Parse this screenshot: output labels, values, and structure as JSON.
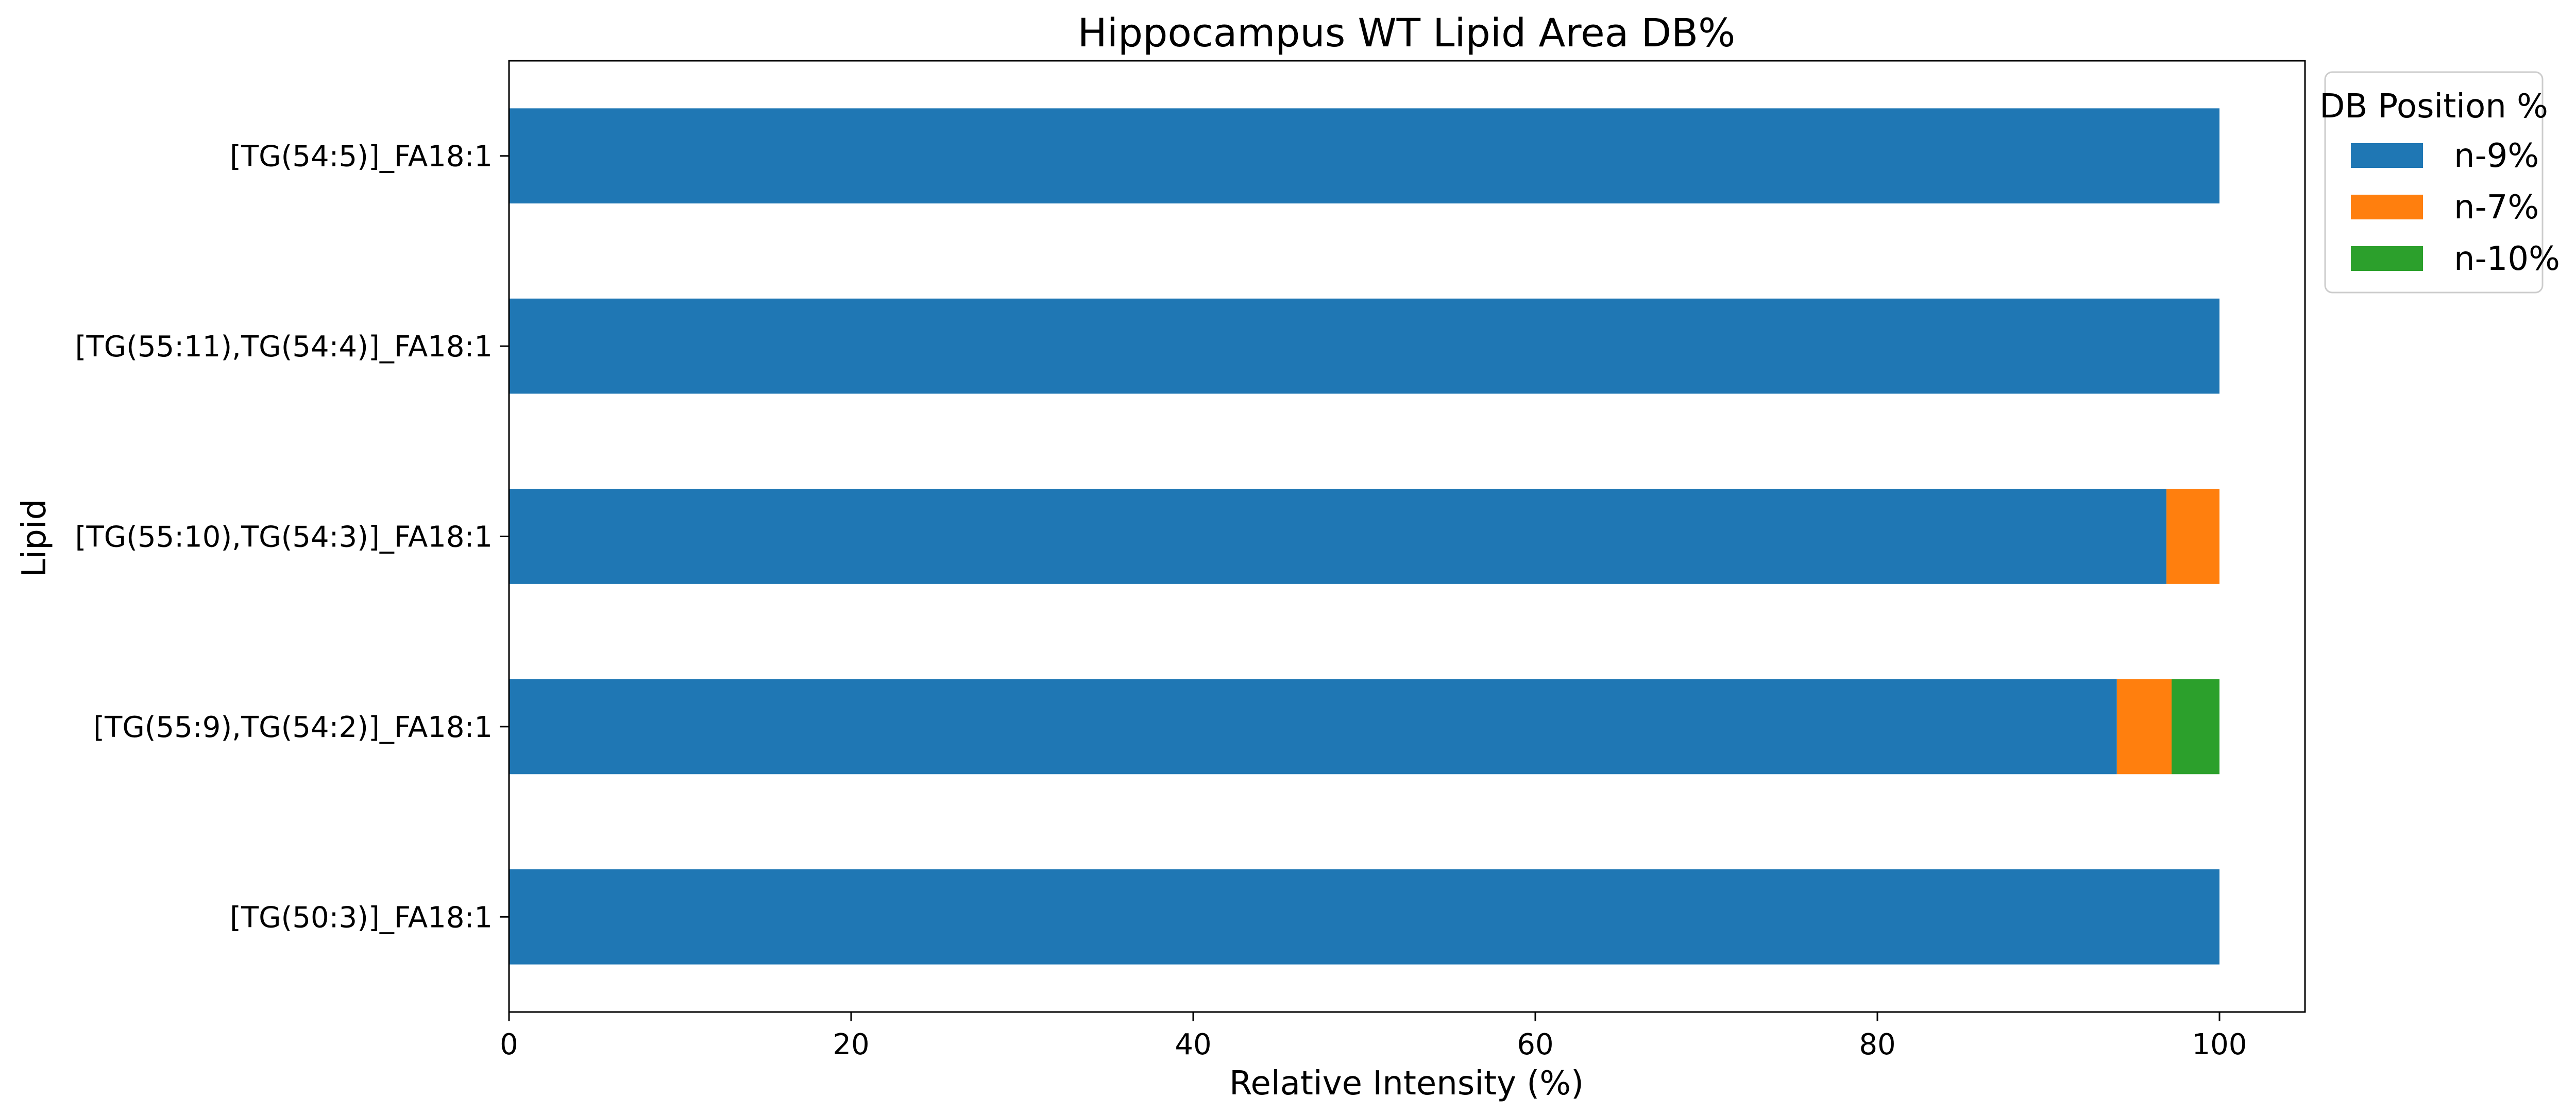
{
  "chart_data": {
    "type": "bar",
    "orientation": "horizontal",
    "stacked": true,
    "title": "Hippocampus WT Lipid Area DB%",
    "xlabel": "Relative Intensity (%)",
    "ylabel": "Lipid",
    "xlim": [
      0,
      105
    ],
    "xticks": [
      0,
      20,
      40,
      60,
      80,
      100
    ],
    "grid": false,
    "categories": [
      "[TG(50:3)]_FA18:1",
      "[TG(55:9),TG(54:2)]_FA18:1",
      "[TG(55:10),TG(54:3)]_FA18:1",
      "[TG(55:11),TG(54:4)]_FA18:1",
      "[TG(54:5)]_FA18:1"
    ],
    "series": [
      {
        "name": "n-9%",
        "color": "#1f77b4",
        "values": [
          100,
          94.0,
          96.9,
          100,
          100
        ]
      },
      {
        "name": "n-7%",
        "color": "#ff7f0e",
        "values": [
          0,
          3.2,
          3.1,
          0,
          0
        ]
      },
      {
        "name": "n-10%",
        "color": "#2ca02c",
        "values": [
          0,
          2.8,
          0,
          0,
          0
        ]
      }
    ],
    "legend": {
      "title": "DB Position %",
      "placement": "outside-top-right"
    }
  }
}
